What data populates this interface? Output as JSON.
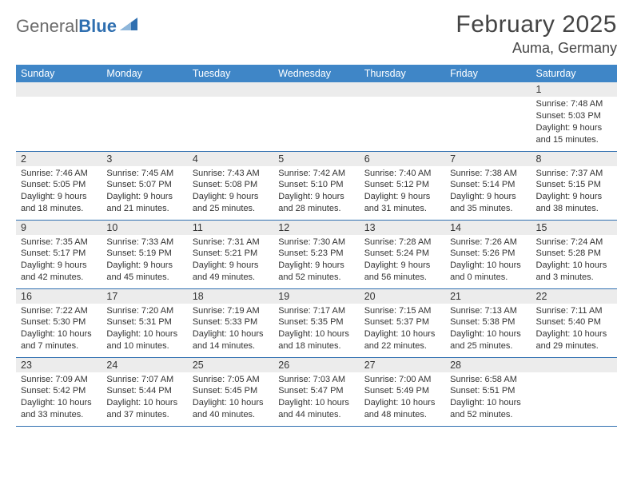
{
  "logo": {
    "general": "General",
    "blue": "Blue"
  },
  "title": "February 2025",
  "location": "Auma, Germany",
  "day_headers": [
    "Sunday",
    "Monday",
    "Tuesday",
    "Wednesday",
    "Thursday",
    "Friday",
    "Saturday"
  ],
  "colors": {
    "header_bg": "#3f86c7",
    "header_fg": "#ffffff",
    "rule": "#2f6fb0",
    "daynum_bg": "#ececec",
    "logo_gray": "#6b6b6b",
    "logo_blue": "#2f6fb0"
  },
  "weeks": [
    [
      {
        "n": "",
        "sr": "",
        "ss": "",
        "dl": ""
      },
      {
        "n": "",
        "sr": "",
        "ss": "",
        "dl": ""
      },
      {
        "n": "",
        "sr": "",
        "ss": "",
        "dl": ""
      },
      {
        "n": "",
        "sr": "",
        "ss": "",
        "dl": ""
      },
      {
        "n": "",
        "sr": "",
        "ss": "",
        "dl": ""
      },
      {
        "n": "",
        "sr": "",
        "ss": "",
        "dl": ""
      },
      {
        "n": "1",
        "sr": "7:48 AM",
        "ss": "5:03 PM",
        "dl": "9 hours and 15 minutes."
      }
    ],
    [
      {
        "n": "2",
        "sr": "7:46 AM",
        "ss": "5:05 PM",
        "dl": "9 hours and 18 minutes."
      },
      {
        "n": "3",
        "sr": "7:45 AM",
        "ss": "5:07 PM",
        "dl": "9 hours and 21 minutes."
      },
      {
        "n": "4",
        "sr": "7:43 AM",
        "ss": "5:08 PM",
        "dl": "9 hours and 25 minutes."
      },
      {
        "n": "5",
        "sr": "7:42 AM",
        "ss": "5:10 PM",
        "dl": "9 hours and 28 minutes."
      },
      {
        "n": "6",
        "sr": "7:40 AM",
        "ss": "5:12 PM",
        "dl": "9 hours and 31 minutes."
      },
      {
        "n": "7",
        "sr": "7:38 AM",
        "ss": "5:14 PM",
        "dl": "9 hours and 35 minutes."
      },
      {
        "n": "8",
        "sr": "7:37 AM",
        "ss": "5:15 PM",
        "dl": "9 hours and 38 minutes."
      }
    ],
    [
      {
        "n": "9",
        "sr": "7:35 AM",
        "ss": "5:17 PM",
        "dl": "9 hours and 42 minutes."
      },
      {
        "n": "10",
        "sr": "7:33 AM",
        "ss": "5:19 PM",
        "dl": "9 hours and 45 minutes."
      },
      {
        "n": "11",
        "sr": "7:31 AM",
        "ss": "5:21 PM",
        "dl": "9 hours and 49 minutes."
      },
      {
        "n": "12",
        "sr": "7:30 AM",
        "ss": "5:23 PM",
        "dl": "9 hours and 52 minutes."
      },
      {
        "n": "13",
        "sr": "7:28 AM",
        "ss": "5:24 PM",
        "dl": "9 hours and 56 minutes."
      },
      {
        "n": "14",
        "sr": "7:26 AM",
        "ss": "5:26 PM",
        "dl": "10 hours and 0 minutes."
      },
      {
        "n": "15",
        "sr": "7:24 AM",
        "ss": "5:28 PM",
        "dl": "10 hours and 3 minutes."
      }
    ],
    [
      {
        "n": "16",
        "sr": "7:22 AM",
        "ss": "5:30 PM",
        "dl": "10 hours and 7 minutes."
      },
      {
        "n": "17",
        "sr": "7:20 AM",
        "ss": "5:31 PM",
        "dl": "10 hours and 10 minutes."
      },
      {
        "n": "18",
        "sr": "7:19 AM",
        "ss": "5:33 PM",
        "dl": "10 hours and 14 minutes."
      },
      {
        "n": "19",
        "sr": "7:17 AM",
        "ss": "5:35 PM",
        "dl": "10 hours and 18 minutes."
      },
      {
        "n": "20",
        "sr": "7:15 AM",
        "ss": "5:37 PM",
        "dl": "10 hours and 22 minutes."
      },
      {
        "n": "21",
        "sr": "7:13 AM",
        "ss": "5:38 PM",
        "dl": "10 hours and 25 minutes."
      },
      {
        "n": "22",
        "sr": "7:11 AM",
        "ss": "5:40 PM",
        "dl": "10 hours and 29 minutes."
      }
    ],
    [
      {
        "n": "23",
        "sr": "7:09 AM",
        "ss": "5:42 PM",
        "dl": "10 hours and 33 minutes."
      },
      {
        "n": "24",
        "sr": "7:07 AM",
        "ss": "5:44 PM",
        "dl": "10 hours and 37 minutes."
      },
      {
        "n": "25",
        "sr": "7:05 AM",
        "ss": "5:45 PM",
        "dl": "10 hours and 40 minutes."
      },
      {
        "n": "26",
        "sr": "7:03 AM",
        "ss": "5:47 PM",
        "dl": "10 hours and 44 minutes."
      },
      {
        "n": "27",
        "sr": "7:00 AM",
        "ss": "5:49 PM",
        "dl": "10 hours and 48 minutes."
      },
      {
        "n": "28",
        "sr": "6:58 AM",
        "ss": "5:51 PM",
        "dl": "10 hours and 52 minutes."
      },
      {
        "n": "",
        "sr": "",
        "ss": "",
        "dl": ""
      }
    ]
  ],
  "labels": {
    "sunrise": "Sunrise: ",
    "sunset": "Sunset: ",
    "daylight": "Daylight: "
  }
}
